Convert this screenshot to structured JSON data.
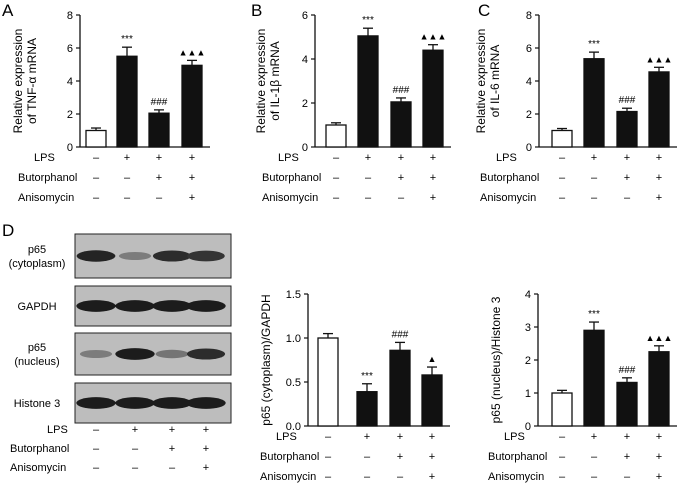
{
  "panels": {
    "A": {
      "letter": "A"
    },
    "B": {
      "letter": "B"
    },
    "C": {
      "letter": "C"
    },
    "D": {
      "letter": "D"
    }
  },
  "treatment_rows": [
    {
      "label": "LPS",
      "signs": [
        "–",
        "+",
        "+",
        "+"
      ]
    },
    {
      "label": "Butorphanol",
      "signs": [
        "–",
        "–",
        "+",
        "+"
      ]
    },
    {
      "label": "Anisomycin",
      "signs": [
        "–",
        "–",
        "–",
        "+"
      ]
    }
  ],
  "blot": {
    "rows": [
      {
        "label": [
          "p65",
          "(cytoplasm)"
        ],
        "band_intensity": [
          0.9,
          0.35,
          0.85,
          0.8
        ]
      },
      {
        "label": [
          "GAPDH"
        ],
        "band_intensity": [
          0.95,
          0.95,
          0.95,
          0.95
        ]
      },
      {
        "label": [
          "p65",
          "(nucleus)"
        ],
        "band_intensity": [
          0.35,
          0.95,
          0.4,
          0.85
        ]
      },
      {
        "label": [
          "Histone 3"
        ],
        "band_intensity": [
          0.95,
          0.95,
          0.95,
          0.95
        ]
      }
    ]
  },
  "chart_data": [
    {
      "panel": "A",
      "type": "bar",
      "ylabel": [
        "Relative expression",
        "of TNF-α mRNA"
      ],
      "ylim": [
        0,
        8
      ],
      "yticks": [
        0,
        2,
        4,
        6,
        8
      ],
      "values": [
        1.0,
        5.5,
        2.05,
        4.95
      ],
      "errors": [
        0.15,
        0.55,
        0.2,
        0.3
      ],
      "annotations": [
        "",
        "***",
        "###",
        "▲▲▲"
      ],
      "bar_fills": [
        "#ffffff",
        "#111111",
        "#111111",
        "#111111"
      ]
    },
    {
      "panel": "B",
      "type": "bar",
      "ylabel": [
        "Relative expression",
        "of IL-1β mRNA"
      ],
      "ylim": [
        0,
        6
      ],
      "yticks": [
        0,
        2,
        4,
        6
      ],
      "values": [
        1.0,
        5.05,
        2.05,
        4.4
      ],
      "errors": [
        0.1,
        0.35,
        0.18,
        0.25
      ],
      "annotations": [
        "",
        "***",
        "###",
        "▲▲▲"
      ],
      "bar_fills": [
        "#ffffff",
        "#111111",
        "#111111",
        "#111111"
      ]
    },
    {
      "panel": "C",
      "type": "bar",
      "ylabel": [
        "Relative expression",
        "of IL-6 mRNA"
      ],
      "ylim": [
        0,
        8
      ],
      "yticks": [
        0,
        2,
        4,
        6,
        8
      ],
      "values": [
        1.0,
        5.35,
        2.15,
        4.55
      ],
      "errors": [
        0.12,
        0.4,
        0.2,
        0.28
      ],
      "annotations": [
        "",
        "***",
        "###",
        "▲▲▲"
      ],
      "bar_fills": [
        "#ffffff",
        "#111111",
        "#111111",
        "#111111"
      ]
    },
    {
      "panel": "D1",
      "type": "bar",
      "ylabel": [
        "p65 (cytoplasm)/GAPDH"
      ],
      "ylim": [
        0,
        1.5
      ],
      "yticks": [
        0.0,
        0.5,
        1.0,
        1.5
      ],
      "ytick_labels": [
        "0.0",
        "0.5",
        "1.0",
        "1.5"
      ],
      "values": [
        1.0,
        0.39,
        0.86,
        0.58
      ],
      "errors": [
        0.05,
        0.09,
        0.09,
        0.09
      ],
      "annotations": [
        "",
        "***",
        "###",
        "▲"
      ],
      "bar_fills": [
        "#ffffff",
        "#111111",
        "#111111",
        "#111111"
      ]
    },
    {
      "panel": "D2",
      "type": "bar",
      "ylabel": [
        "p65 (nucleus)/Histone 3"
      ],
      "ylim": [
        0,
        4
      ],
      "yticks": [
        0,
        1,
        2,
        3,
        4
      ],
      "values": [
        1.0,
        2.9,
        1.32,
        2.25
      ],
      "errors": [
        0.08,
        0.25,
        0.14,
        0.18
      ],
      "annotations": [
        "",
        "***",
        "###",
        "▲▲▲"
      ],
      "bar_fills": [
        "#ffffff",
        "#111111",
        "#111111",
        "#111111"
      ]
    }
  ]
}
